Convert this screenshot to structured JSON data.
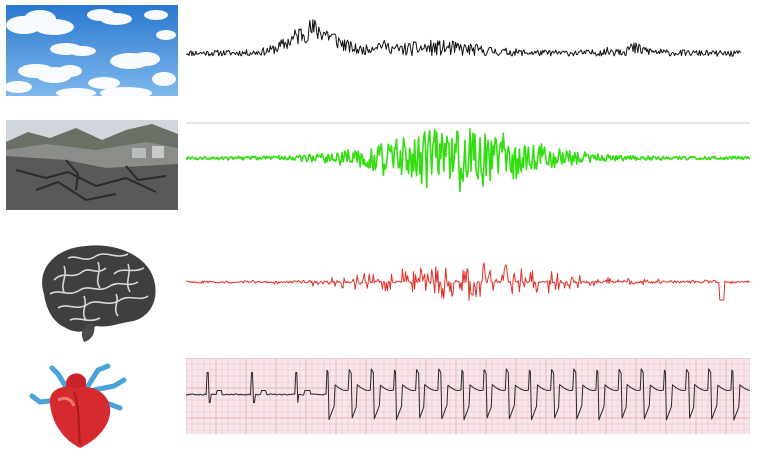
{
  "rows": [
    {
      "name": "sky",
      "image_icon": "cloudy-sky-photo",
      "signal": {
        "color": "#111111",
        "style": "noisy-trace",
        "seed": 11,
        "samples": 560
      }
    },
    {
      "name": "earthquake",
      "image_icon": "cracked-road-photo",
      "signal": {
        "color": "#33dd11",
        "style": "burst-oscillation",
        "seed": 23,
        "samples": 560
      }
    },
    {
      "name": "brain",
      "image_icon": "brain-illustration",
      "signal": {
        "color": "#e0302a",
        "style": "spike-train",
        "seed": 37,
        "samples": 560
      }
    },
    {
      "name": "heart",
      "image_icon": "heart-illustration",
      "signal": {
        "color": "#2a2a2a",
        "style": "ecg-trace",
        "grid_color": "#e8b4c0",
        "grid_bg": "#f7e6ea",
        "seed": 41,
        "samples": 560
      }
    }
  ]
}
